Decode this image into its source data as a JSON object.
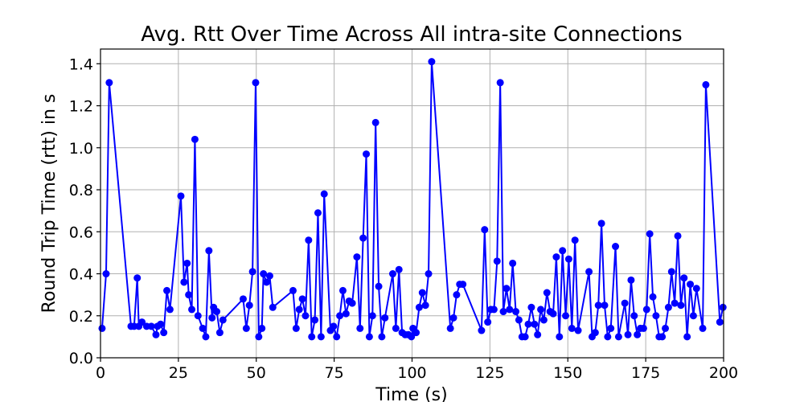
{
  "chart_data": {
    "type": "line",
    "title": "Avg. Rtt Over Time Across All intra-site Connections",
    "xlabel": "Time (s)",
    "ylabel": "Round Trip Time (rtt) in s",
    "xlim": [
      0,
      200
    ],
    "ylim": [
      0,
      1.47
    ],
    "xticks": [
      0,
      25,
      50,
      75,
      100,
      125,
      150,
      175,
      200
    ],
    "yticks": [
      0.0,
      0.2,
      0.4,
      0.6,
      0.8,
      1.0,
      1.2,
      1.4
    ],
    "xtick_labels": [
      "0",
      "25",
      "50",
      "75",
      "100",
      "125",
      "150",
      "175",
      "200"
    ],
    "ytick_labels": [
      "0.0",
      "0.2",
      "0.4",
      "0.6",
      "0.8",
      "1.0",
      "1.2",
      "1.4"
    ],
    "grid": true,
    "series": [
      {
        "color": "#0000ff",
        "marker": "circle",
        "x": [
          0.5,
          1.8,
          2.8,
          9.8,
          10.8,
          11.8,
          12.3,
          13.3,
          14.8,
          16.3,
          17.8,
          18.3,
          19.3,
          20.3,
          21.3,
          22.3,
          25.8,
          26.8,
          27.8,
          28.3,
          29.3,
          30.3,
          31.3,
          32.8,
          33.8,
          34.8,
          35.8,
          36.3,
          37.3,
          38.3,
          39.3,
          45.8,
          46.8,
          47.8,
          48.8,
          49.8,
          50.8,
          51.8,
          52.3,
          53.3,
          54.3,
          55.3,
          61.8,
          62.8,
          63.8,
          64.8,
          65.8,
          66.8,
          67.8,
          68.8,
          69.8,
          70.8,
          71.8,
          73.8,
          74.8,
          75.8,
          76.8,
          77.8,
          78.8,
          79.8,
          80.8,
          82.3,
          83.3,
          84.3,
          85.3,
          86.3,
          87.3,
          88.3,
          89.3,
          90.3,
          91.3,
          93.8,
          94.8,
          95.8,
          96.8,
          97.8,
          98.8,
          99.8,
          100.3,
          101.3,
          102.3,
          103.3,
          104.3,
          105.3,
          106.3,
          112.3,
          113.3,
          114.3,
          115.3,
          116.3,
          122.3,
          123.3,
          124.3,
          125.3,
          126.3,
          127.3,
          128.3,
          129.3,
          130.3,
          131.3,
          132.3,
          133.3,
          134.3,
          135.3,
          136.3,
          137.3,
          138.3,
          139.3,
          140.3,
          141.3,
          142.3,
          143.3,
          144.3,
          145.3,
          146.3,
          147.3,
          148.3,
          149.3,
          150.3,
          151.3,
          152.3,
          153.3,
          156.8,
          157.8,
          158.8,
          159.8,
          160.8,
          161.8,
          162.8,
          163.8,
          165.3,
          166.3,
          168.3,
          169.3,
          170.3,
          171.3,
          172.3,
          173.3,
          174.3,
          175.3,
          176.3,
          177.3,
          178.3,
          179.3,
          180.3,
          181.3,
          182.3,
          183.3,
          184.3,
          185.3,
          186.3,
          187.3,
          188.3,
          189.3,
          190.3,
          191.3,
          193.3,
          194.3,
          198.8,
          199.8
        ],
        "y": [
          0.14,
          0.4,
          1.31,
          0.15,
          0.15,
          0.38,
          0.15,
          0.17,
          0.15,
          0.15,
          0.11,
          0.15,
          0.16,
          0.12,
          0.32,
          0.23,
          0.77,
          0.36,
          0.45,
          0.3,
          0.23,
          1.04,
          0.2,
          0.14,
          0.1,
          0.51,
          0.19,
          0.24,
          0.22,
          0.12,
          0.18,
          0.28,
          0.14,
          0.25,
          0.41,
          1.31,
          0.1,
          0.14,
          0.4,
          0.36,
          0.39,
          0.24,
          0.32,
          0.14,
          0.23,
          0.28,
          0.2,
          0.56,
          0.1,
          0.18,
          0.69,
          0.1,
          0.78,
          0.13,
          0.15,
          0.1,
          0.2,
          0.32,
          0.21,
          0.27,
          0.26,
          0.48,
          0.14,
          0.57,
          0.97,
          0.1,
          0.2,
          1.12,
          0.34,
          0.1,
          0.19,
          0.4,
          0.14,
          0.42,
          0.12,
          0.11,
          0.11,
          0.1,
          0.14,
          0.12,
          0.24,
          0.31,
          0.25,
          0.4,
          1.41,
          0.14,
          0.19,
          0.3,
          0.35,
          0.35,
          0.13,
          0.61,
          0.17,
          0.23,
          0.23,
          0.46,
          1.31,
          0.22,
          0.33,
          0.23,
          0.45,
          0.22,
          0.18,
          0.1,
          0.1,
          0.16,
          0.24,
          0.16,
          0.11,
          0.23,
          0.18,
          0.31,
          0.22,
          0.21,
          0.48,
          0.1,
          0.51,
          0.2,
          0.47,
          0.14,
          0.56,
          0.13,
          0.41,
          0.1,
          0.12,
          0.25,
          0.64,
          0.25,
          0.1,
          0.14,
          0.53,
          0.1,
          0.26,
          0.11,
          0.37,
          0.2,
          0.11,
          0.14,
          0.14,
          0.23,
          0.59,
          0.29,
          0.2,
          0.1,
          0.1,
          0.14,
          0.24,
          0.41,
          0.26,
          0.58,
          0.25,
          0.38,
          0.1,
          0.35,
          0.2,
          0.33,
          0.14,
          1.3,
          0.17,
          0.24
        ]
      }
    ]
  }
}
